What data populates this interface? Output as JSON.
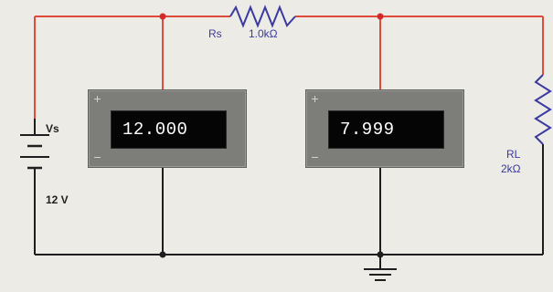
{
  "colors": {
    "background": "#ecebe6",
    "wire_top": "#e04a3a",
    "wire": "#1e1e1e",
    "component": "#3b3aa0",
    "junction": "#d42a2a",
    "meter_body": "#7d7d7a",
    "meter_screen": "#050505"
  },
  "source": {
    "name": "Vs",
    "value": "12 V"
  },
  "resistor_series": {
    "name": "Rs",
    "value": "1.0kΩ"
  },
  "resistor_load": {
    "name": "RL",
    "value": "2kΩ"
  },
  "meters": [
    {
      "reading": "12.000"
    },
    {
      "reading": "7.999"
    }
  ],
  "icons": [
    "battery-icon",
    "resistor-icon",
    "ground-icon",
    "junction-dot-icon"
  ]
}
